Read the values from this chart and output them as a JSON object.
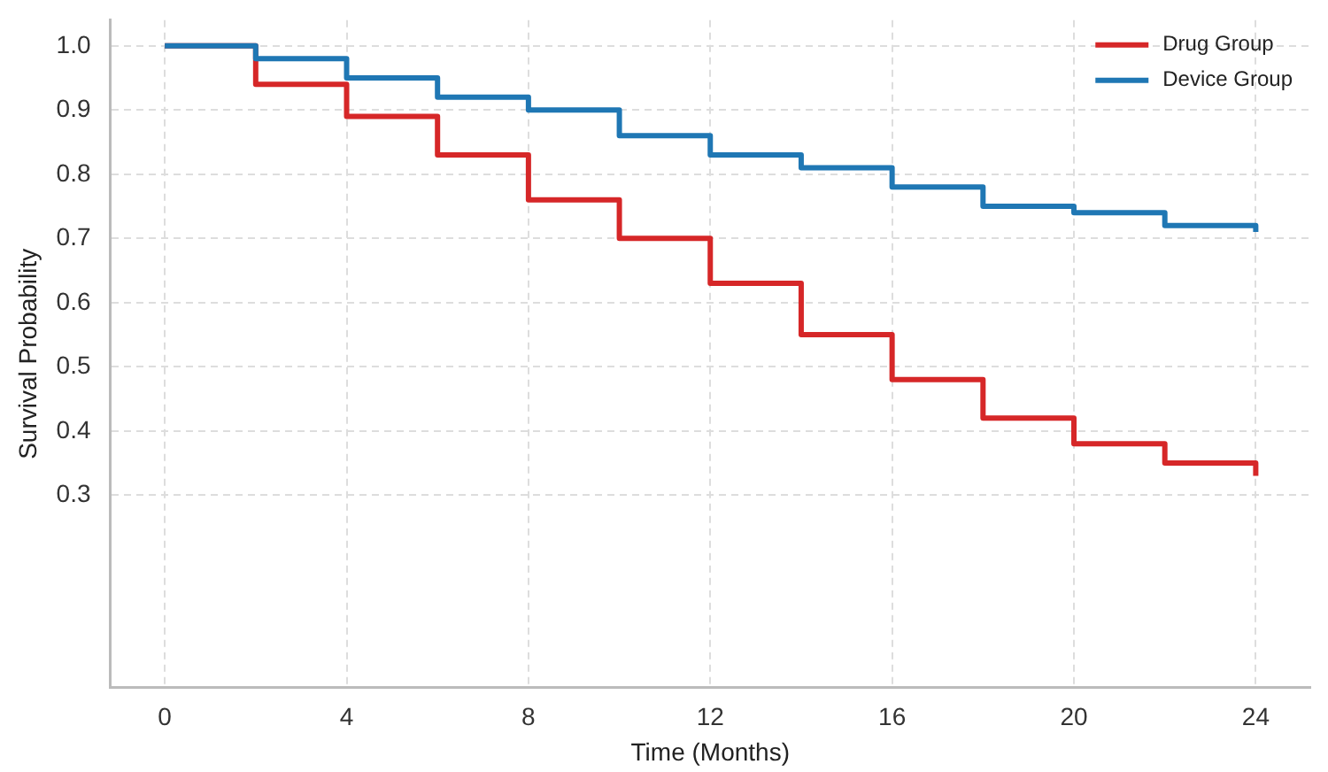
{
  "chart_data": {
    "type": "step",
    "xlabel": "Time (Months)",
    "ylabel": "Survival Probability",
    "x": [
      0,
      2,
      4,
      6,
      8,
      10,
      12,
      14,
      16,
      18,
      20,
      22,
      24
    ],
    "series": [
      {
        "name": "Drug Group",
        "color": "#d62728",
        "values": [
          1.0,
          0.94,
          0.89,
          0.83,
          0.76,
          0.7,
          0.63,
          0.55,
          0.48,
          0.42,
          0.38,
          0.35,
          0.33
        ]
      },
      {
        "name": "Device Group",
        "color": "#1f77b4",
        "values": [
          1.0,
          0.98,
          0.95,
          0.92,
          0.9,
          0.86,
          0.83,
          0.81,
          0.78,
          0.75,
          0.74,
          0.72,
          0.71
        ]
      }
    ],
    "xlim": [
      -1.2,
      25.2
    ],
    "xticks": [
      0,
      4,
      8,
      12,
      16,
      20,
      24
    ],
    "ylim": [
      0,
      1.04
    ],
    "yticks": [
      0.3,
      0.4,
      0.5,
      0.6,
      0.7,
      0.8,
      0.9,
      {
        "value": 1,
        "label": "1.0"
      }
    ],
    "grid": true,
    "legend": "top right",
    "line_style": "solid",
    "marker": "none"
  }
}
